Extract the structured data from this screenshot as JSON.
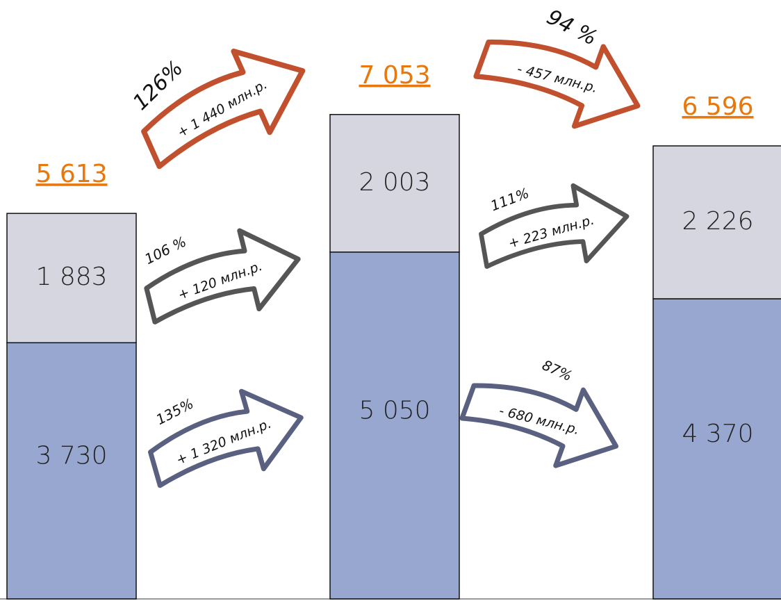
{
  "chart_data": {
    "type": "stacked-bar",
    "categories": [
      null,
      null,
      null
    ],
    "ylim": [
      0,
      8720
    ],
    "series": [
      {
        "name": null,
        "color": "#97a7d0",
        "values": [
          3730,
          5050,
          4370
        ],
        "value_labels": [
          "3 730",
          "5 050",
          "4 370"
        ]
      },
      {
        "name": null,
        "color": "#d5d6e0",
        "values": [
          1883,
          2003,
          2226
        ],
        "value_labels": [
          "1 883",
          "2 003",
          "2 226"
        ]
      }
    ],
    "totals": [
      5613,
      7053,
      6596
    ],
    "total_labels": [
      "5 613",
      "7 053",
      "6 596"
    ],
    "total_color": "#e8780e",
    "annotations": [
      {
        "percent": "126%",
        "change": "+ 1 440  млн.р.",
        "color": "#c0502e"
      },
      {
        "percent": "106 %",
        "change": "+ 120  млн.р.",
        "color": "#555555"
      },
      {
        "percent": "135%",
        "change": "+ 1 320 млн.р.",
        "color": "#5a6080"
      },
      {
        "percent": "94 %",
        "change": "- 457  млн.р.",
        "color": "#c0502e"
      },
      {
        "percent": "111%",
        "change": "+ 223 млн.р.",
        "color": "#555555"
      },
      {
        "percent": "87%",
        "change": "- 680  млн.р.",
        "color": "#5a6080"
      }
    ]
  }
}
